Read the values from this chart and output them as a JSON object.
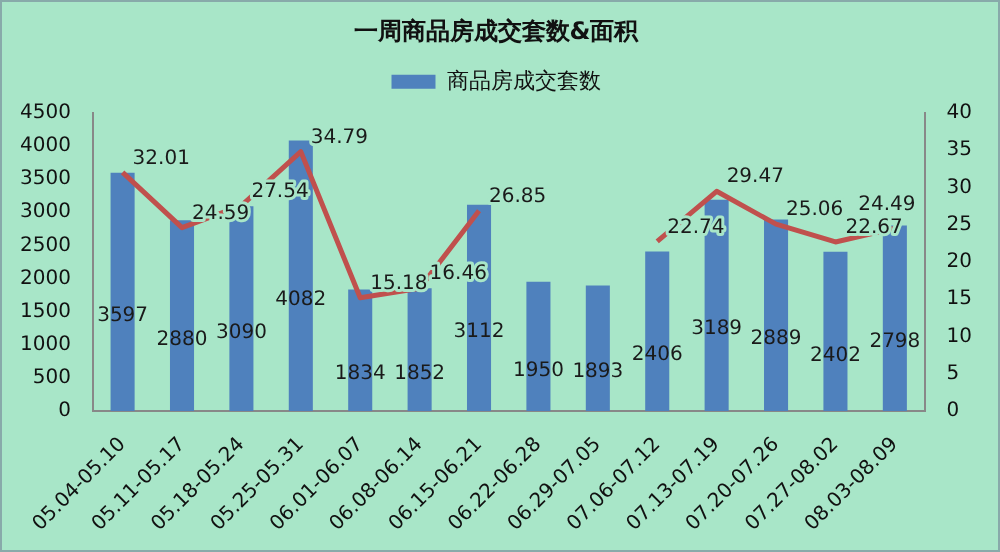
{
  "chart_data": {
    "type": "bar",
    "title": "一周商品房成交套数&面积",
    "categories": [
      "05.04-05.10",
      "05.11-05.17",
      "05.18-05.24",
      "05.25-05.31",
      "06.01-06.07",
      "06.08-06.14",
      "06.15-06.21",
      "06.22-06.28",
      "06.29-07.05",
      "07.06-07.12",
      "07.13-07.19",
      "07.20-07.26",
      "07.27-08.02",
      "08.03-08.09"
    ],
    "series": [
      {
        "name": "商品房成交套数",
        "color": "#4f81bd",
        "values": [
          3597,
          2880,
          3090,
          4082,
          1834,
          1852,
          3112,
          1950,
          1893,
          2406,
          3189,
          2889,
          2402,
          2798
        ]
      },
      {
        "type": "line",
        "axis": "y2",
        "color": "#c0504d",
        "values": [
          32.01,
          24.59,
          27.54,
          34.79,
          15.18,
          16.46,
          26.85,
          null,
          null,
          22.74,
          29.47,
          25.06,
          22.67,
          24.49
        ]
      }
    ],
    "ylim": [
      0,
      4500
    ],
    "yticks": [
      0,
      500,
      1000,
      1500,
      2000,
      2500,
      3000,
      3500,
      4000,
      4500
    ],
    "y2lim": [
      0,
      40
    ],
    "y2ticks": [
      0,
      5,
      10,
      15,
      20,
      25,
      30,
      35,
      40
    ],
    "grid": false,
    "legend": "top",
    "marker": "none",
    "line_style": "solid",
    "data_labels": true
  }
}
